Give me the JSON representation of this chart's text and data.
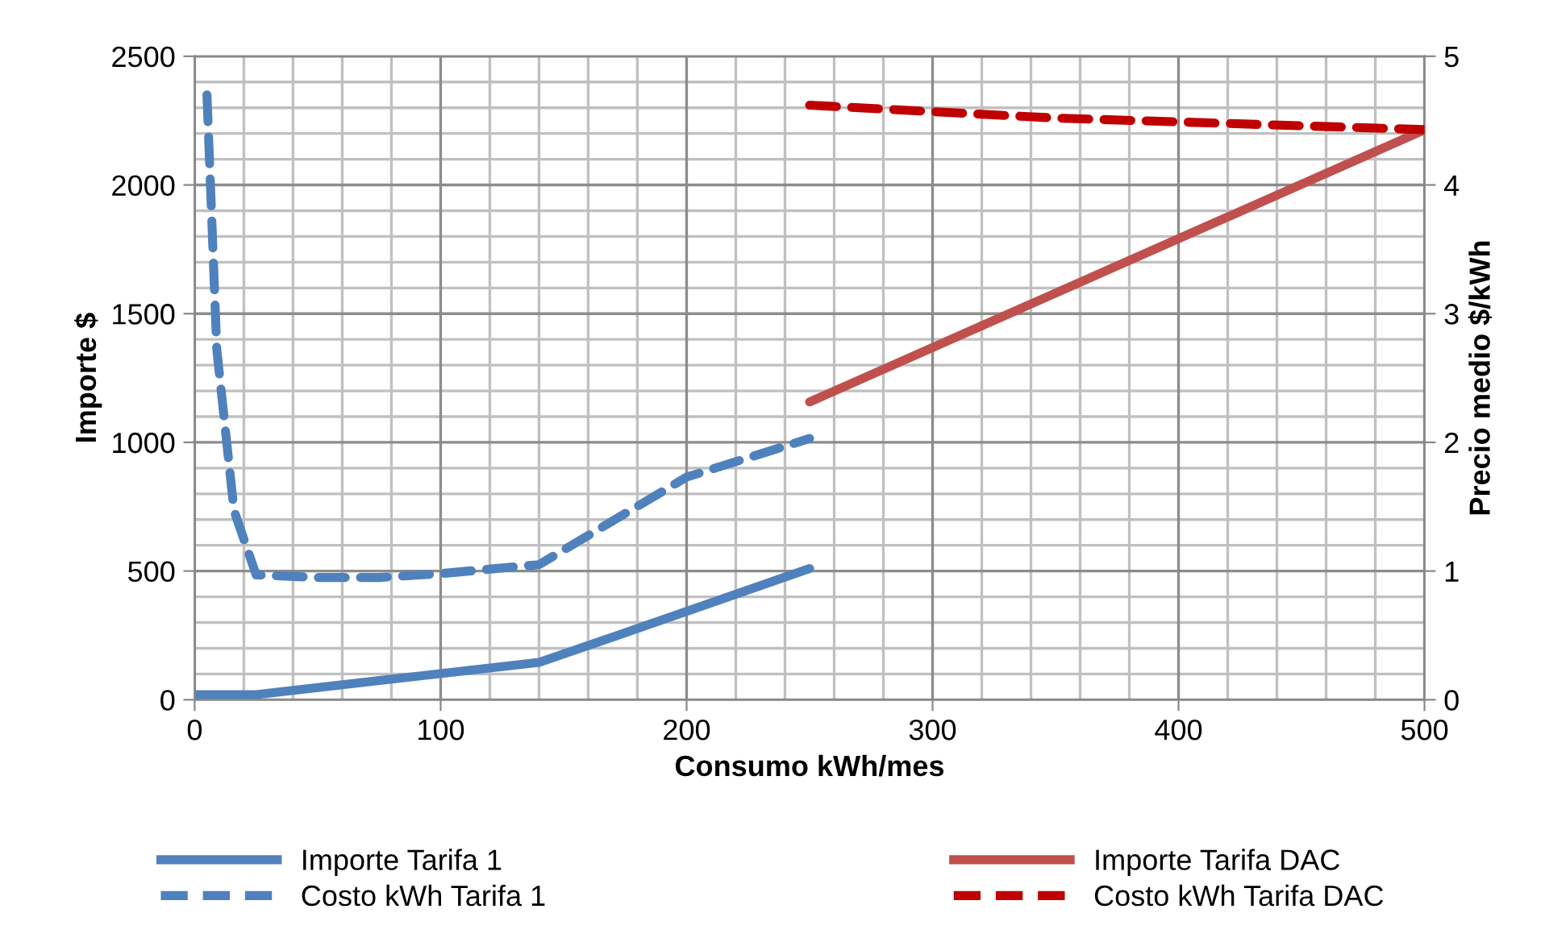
{
  "chart_data": {
    "type": "line",
    "xlabel": "Consumo kWh/mes",
    "ylabel": "Importe $",
    "y2label": "Precio medio $/kWh",
    "xlim": [
      0,
      500
    ],
    "xticks": [
      0,
      100,
      200,
      300,
      400,
      500
    ],
    "ylim": [
      0,
      2500
    ],
    "yticks": [
      0,
      500,
      1000,
      1500,
      2000,
      2500
    ],
    "y2lim": [
      0,
      5
    ],
    "y2ticks": [
      0,
      1,
      2,
      3,
      4,
      5
    ],
    "grid": true,
    "legend": "bottom",
    "marker": "none",
    "series": [
      {
        "name": "Importe Tarifa 1",
        "color": "#4f81bd",
        "line_style": "solid",
        "x": [
          0,
          25,
          80,
          140,
          178,
          250
        ],
        "values": [
          20,
          20,
          80,
          145,
          270,
          510
        ]
      },
      {
        "name": "Importe Tarifa DAC",
        "color": "#c0504d",
        "line_style": "solid",
        "x": [
          250,
          500
        ],
        "values": [
          1157,
          2214
        ]
      },
      {
        "name": "Costo kWh Tarifa 1",
        "color": "#4f81bd",
        "line_style": "dashed",
        "axis": "y2",
        "x": [
          5,
          9,
          16,
          25,
          50,
          75,
          100,
          140,
          200,
          250
        ],
        "values": [
          4.7,
          2.72,
          1.47,
          0.97,
          0.95,
          0.95,
          0.98,
          1.05,
          1.73,
          2.03
        ]
      },
      {
        "name": "Costo kWh Tarifa DAC",
        "color": "#c00000",
        "line_style": "dashed",
        "axis": "y2",
        "x": [
          250,
          300,
          350,
          400,
          450,
          500
        ],
        "values": [
          4.62,
          4.57,
          4.52,
          4.49,
          4.46,
          4.43
        ]
      }
    ]
  }
}
